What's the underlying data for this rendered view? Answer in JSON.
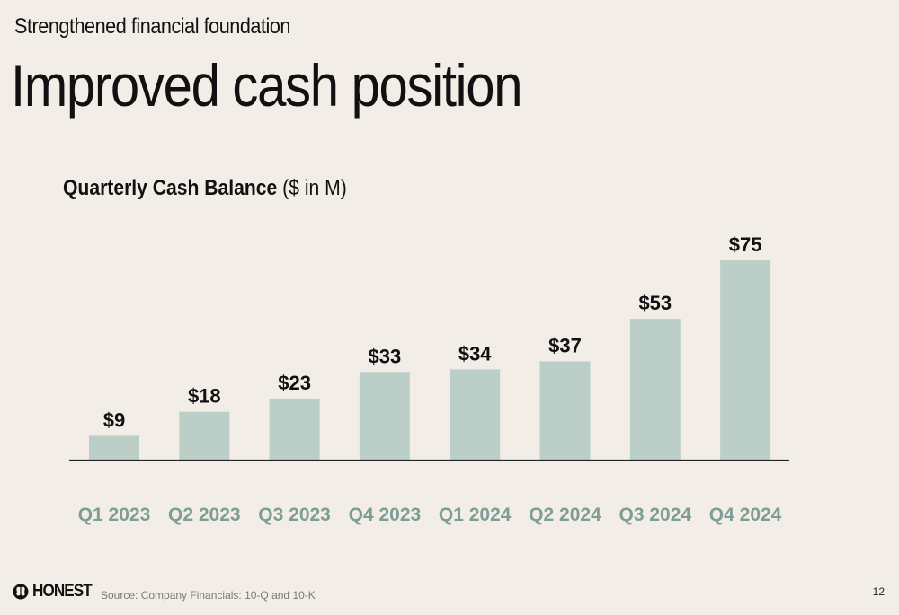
{
  "eyebrow": "Strengthened financial foundation",
  "headline": "Improved cash position",
  "chart_data": {
    "type": "bar",
    "title": "Quarterly Cash Balance",
    "unit_note": "($ in M)",
    "categories": [
      "Q1 2023",
      "Q2 2023",
      "Q3 2023",
      "Q4 2023",
      "Q1 2024",
      "Q2 2024",
      "Q3 2024",
      "Q4 2024"
    ],
    "values": [
      9,
      18,
      23,
      33,
      34,
      37,
      53,
      75
    ],
    "labels": [
      "$9",
      "$18",
      "$23",
      "$33",
      "$34",
      "$37",
      "$53",
      "$75"
    ],
    "xlabel": "",
    "ylabel": "",
    "ylim": [
      0,
      75
    ],
    "grid": false,
    "legend": "none",
    "bar_color": "#BBCFC8",
    "category_label_color": "#7E9E95"
  },
  "footer": {
    "logo_text": "HONEST",
    "source": "Source: Company Financials: 10-Q and 10-K",
    "page_number": "12"
  }
}
